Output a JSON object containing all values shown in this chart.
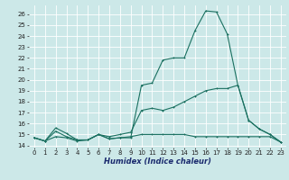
{
  "xlabel": "Humidex (Indice chaleur)",
  "background_color": "#cce8e8",
  "grid_color": "#ffffff",
  "line_color": "#1a7060",
  "x_ticks": [
    0,
    1,
    2,
    3,
    4,
    5,
    6,
    7,
    8,
    9,
    10,
    11,
    12,
    13,
    14,
    15,
    16,
    17,
    18,
    19,
    20,
    21,
    22,
    23
  ],
  "ylim": [
    13.8,
    26.8
  ],
  "xlim": [
    -0.5,
    23.5
  ],
  "y_ticks": [
    14,
    15,
    16,
    17,
    18,
    19,
    20,
    21,
    22,
    23,
    24,
    25,
    26
  ],
  "line1_y": [
    14.7,
    14.4,
    15.6,
    15.1,
    14.5,
    14.5,
    15.0,
    14.6,
    14.7,
    14.7,
    19.5,
    19.7,
    21.8,
    22.0,
    22.0,
    24.5,
    26.3,
    26.2,
    24.2,
    19.5,
    16.3,
    15.5,
    15.0,
    14.3
  ],
  "line2_y": [
    14.7,
    14.4,
    15.3,
    14.8,
    14.5,
    14.5,
    15.0,
    14.8,
    15.0,
    15.2,
    17.2,
    17.4,
    17.2,
    17.5,
    18.0,
    18.5,
    19.0,
    19.2,
    19.2,
    19.5,
    16.3,
    15.5,
    15.0,
    14.3
  ],
  "line3_y": [
    14.7,
    14.4,
    14.8,
    14.7,
    14.4,
    14.5,
    15.0,
    14.6,
    14.7,
    14.8,
    15.0,
    15.0,
    15.0,
    15.0,
    15.0,
    14.8,
    14.8,
    14.8,
    14.8,
    14.8,
    14.8,
    14.8,
    14.8,
    14.3
  ],
  "marker_size": 2.0,
  "line_width": 0.8,
  "tick_fontsize": 5.0,
  "xlabel_fontsize": 6.0
}
